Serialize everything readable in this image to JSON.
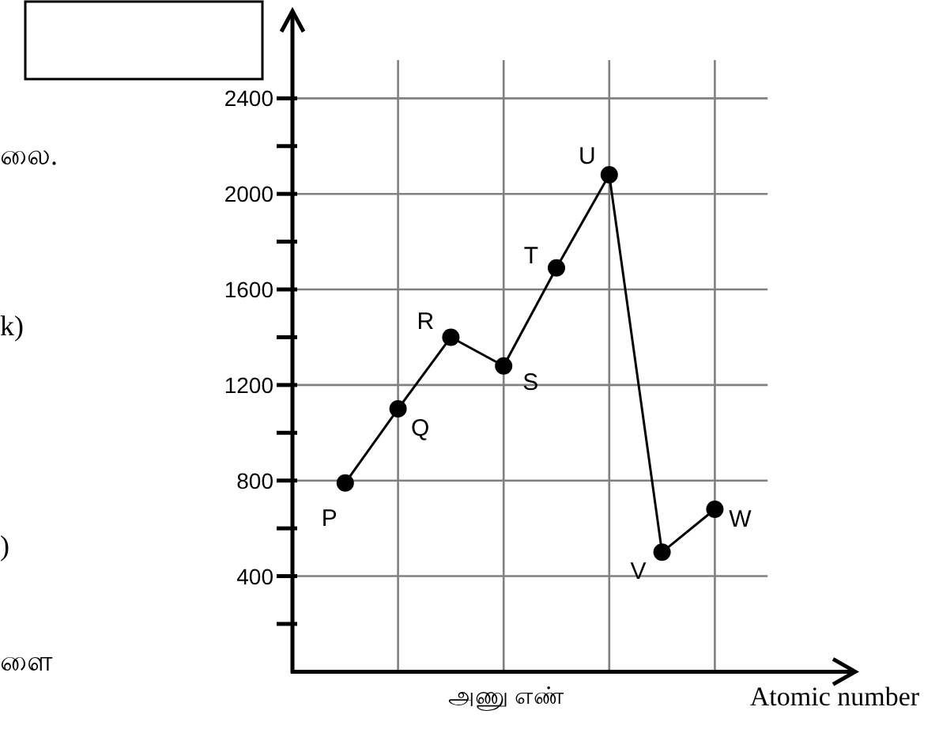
{
  "chart_data": {
    "type": "line",
    "categories": [
      null,
      null,
      null,
      null,
      null,
      null,
      null,
      null
    ],
    "series": [
      {
        "color": "#000000",
        "values": [
          790,
          1100,
          1400,
          1280,
          1690,
          2080,
          500,
          680
        ]
      }
    ],
    "marker": "circle",
    "ylim": [
      0,
      2560
    ],
    "yticks": [
      {
        "value": 200,
        "label": null
      },
      400,
      {
        "value": 600,
        "label": null
      },
      800,
      {
        "value": 1000,
        "label": null
      },
      1200,
      {
        "value": 1400,
        "label": null
      },
      1600,
      {
        "value": 1800,
        "label": null
      },
      2000,
      {
        "value": 2200,
        "label": null
      },
      2400
    ],
    "grid": true,
    "xlabel": "அணு எண்",
    "annotations": [
      "P",
      "Q",
      "R",
      "S",
      "T",
      "U",
      "V",
      "W",
      "Atomic number",
      "லை.",
      "k)",
      ")",
      "ளை"
    ]
  }
}
